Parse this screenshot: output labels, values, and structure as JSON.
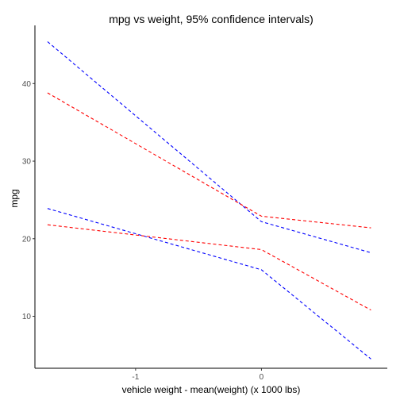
{
  "chart_data": {
    "type": "line",
    "title": "mpg vs weight, 95% confidence intervals)",
    "xlabel": "vehicle weight - mean(weight) (x 1000 lbs)",
    "ylabel": "mpg",
    "xlim": [
      -1.8,
      1.0
    ],
    "ylim": [
      3.3,
      47.5
    ],
    "x_ticks": [
      {
        "value": -1,
        "label": "-1"
      },
      {
        "value": 0,
        "label": "0"
      }
    ],
    "y_ticks": [
      {
        "value": 10,
        "label": "10"
      },
      {
        "value": 20,
        "label": "20"
      },
      {
        "value": 30,
        "label": "30"
      },
      {
        "value": 40,
        "label": "40"
      }
    ],
    "grid": false,
    "legend": "none",
    "series": [
      {
        "color": "#0000ff",
        "points": [
          [
            -1.7,
            45.4
          ],
          [
            0,
            22.2
          ],
          [
            0.87,
            18.2
          ]
        ]
      },
      {
        "color": "#0000ff",
        "points": [
          [
            -1.7,
            23.9
          ],
          [
            0,
            16.0
          ],
          [
            0.87,
            4.5
          ]
        ]
      },
      {
        "color": "#ff0000",
        "points": [
          [
            -1.7,
            38.8
          ],
          [
            0,
            22.9
          ],
          [
            0.87,
            21.4
          ]
        ]
      },
      {
        "color": "#ff0000",
        "points": [
          [
            -1.7,
            21.8
          ],
          [
            0,
            18.6
          ],
          [
            0.87,
            10.8
          ]
        ]
      }
    ]
  }
}
